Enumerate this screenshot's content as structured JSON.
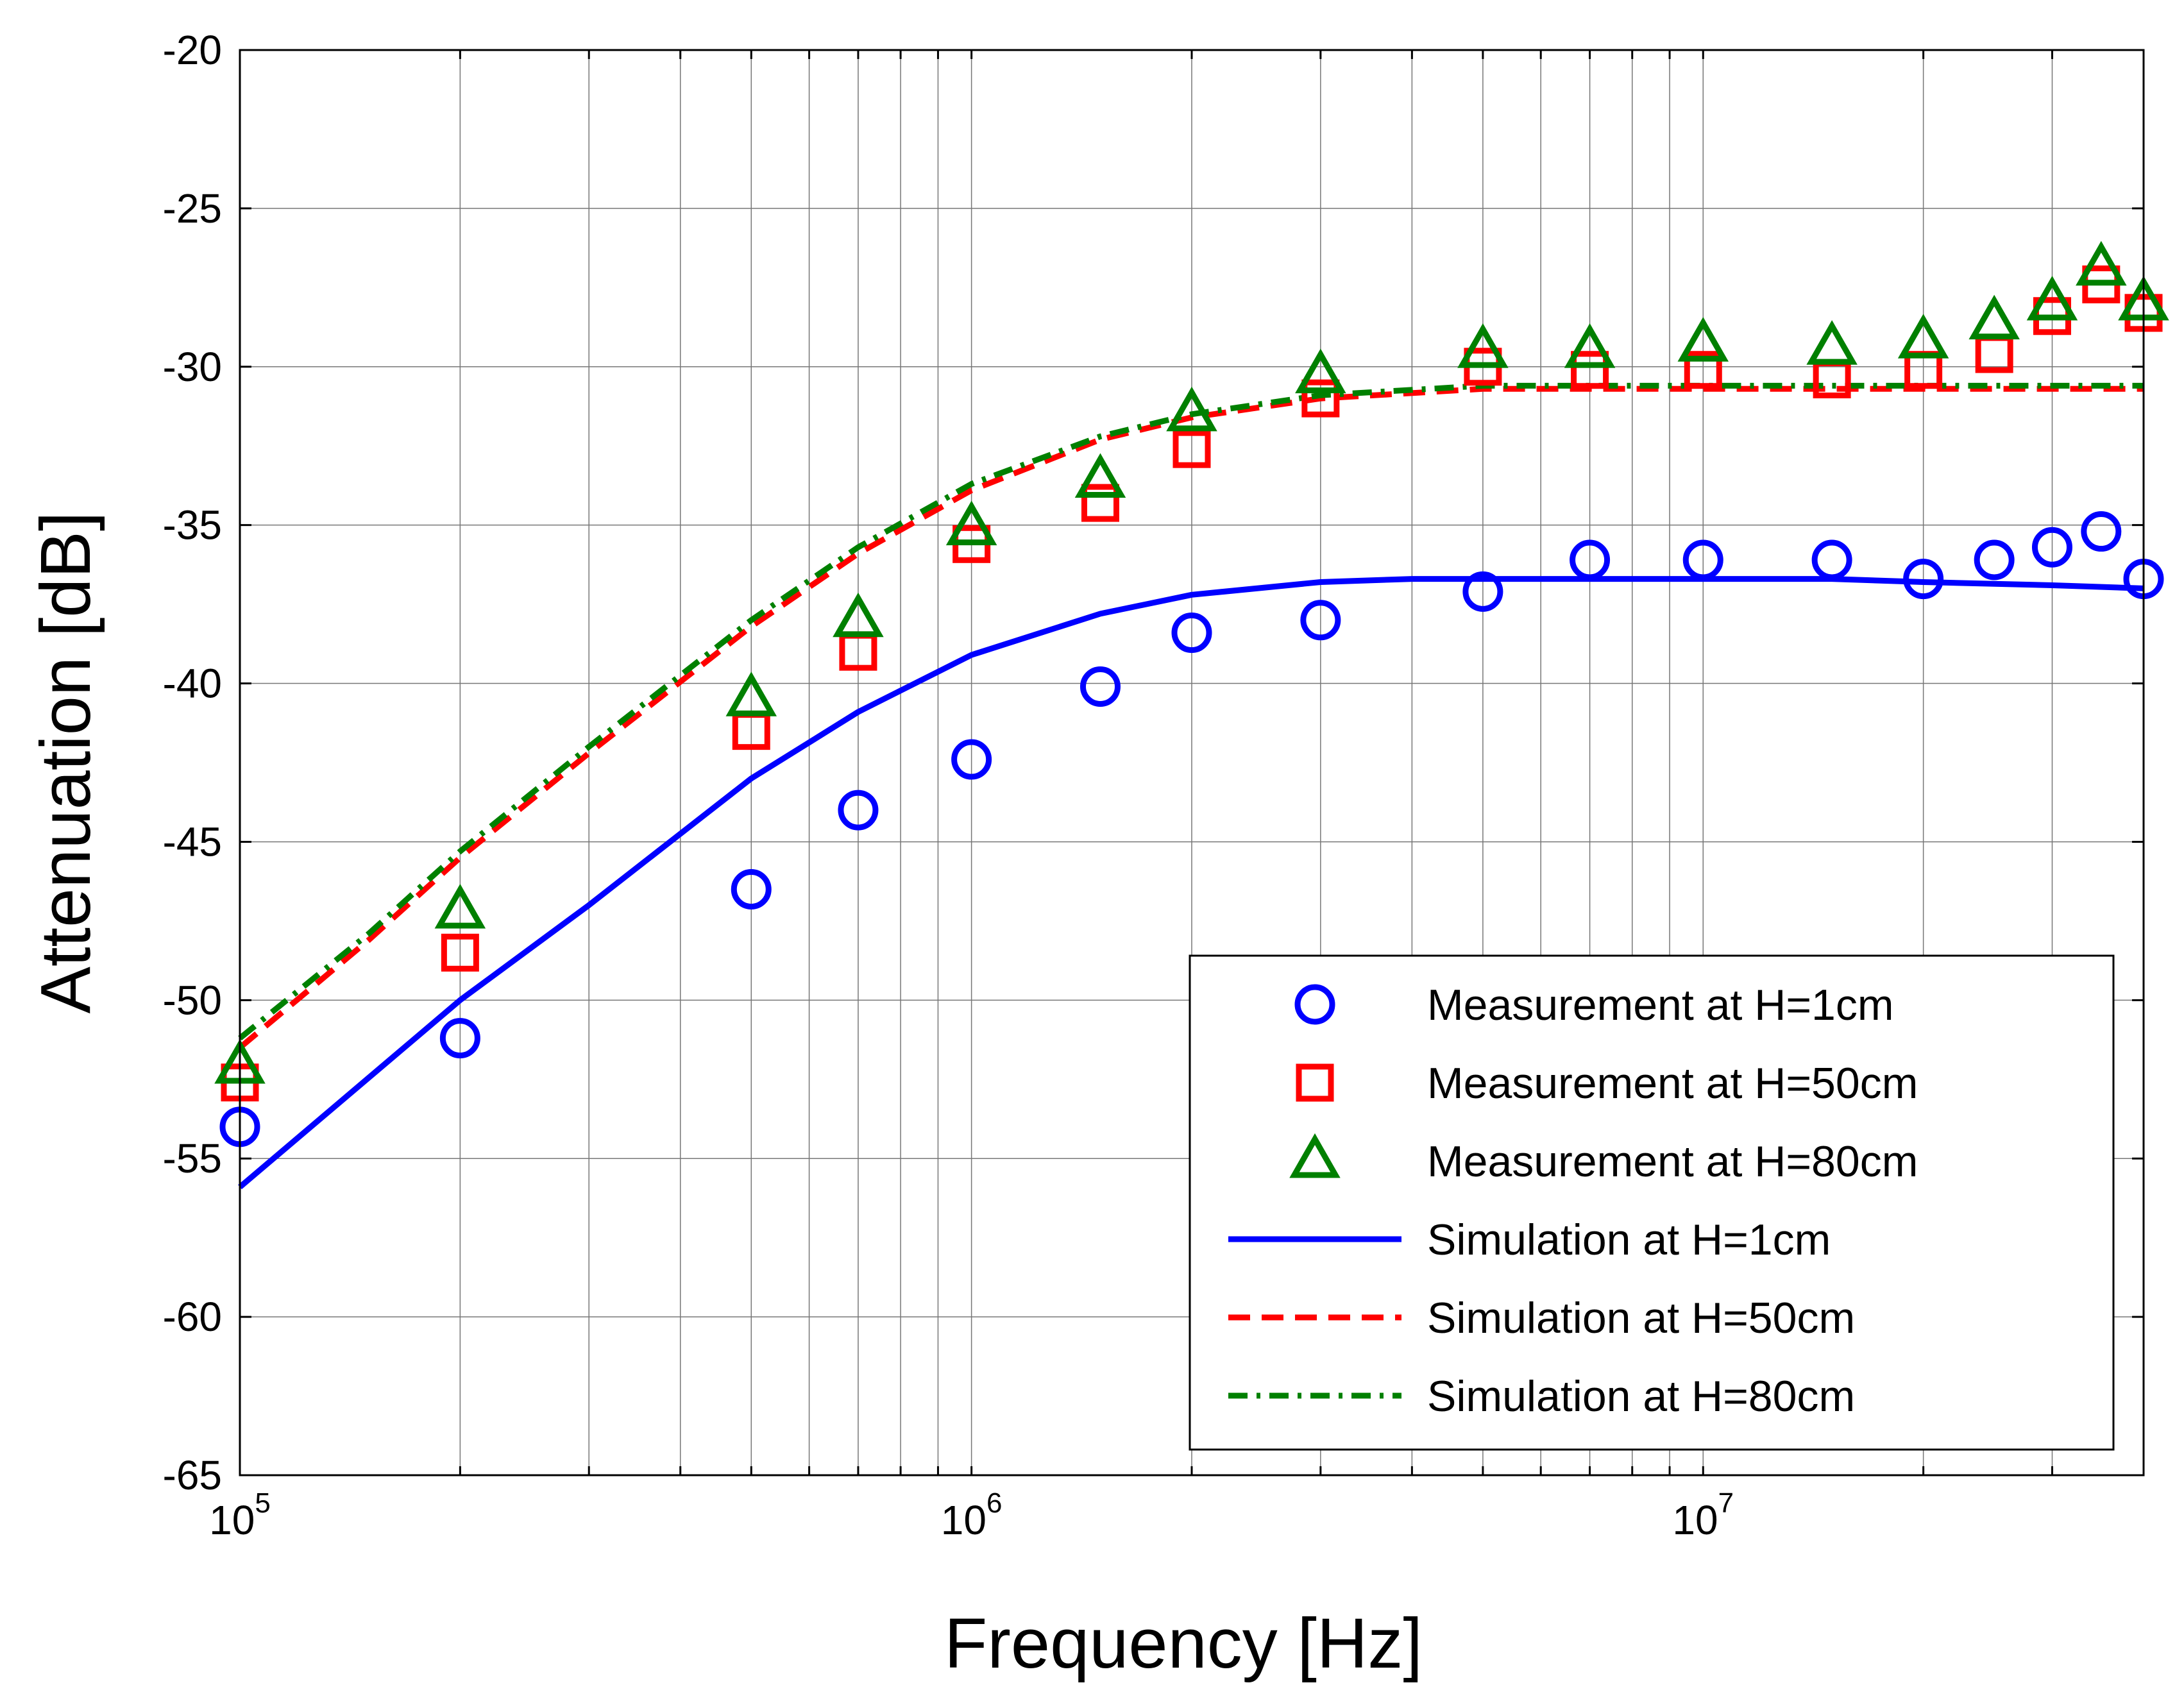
{
  "chart_data": {
    "type": "line",
    "title": "",
    "xlabel": "Frequency [Hz]",
    "ylabel": "Attenuation [dB]",
    "xscale": "log",
    "xlim": [
      100000,
      40000000
    ],
    "ylim": [
      -65,
      -20
    ],
    "grid": true,
    "legend_position": "bottom-right",
    "x_ticks": [
      {
        "value": 100000,
        "base": "10",
        "exp": "5"
      },
      {
        "value": 1000000,
        "base": "10",
        "exp": "6"
      },
      {
        "value": 10000000,
        "base": "10",
        "exp": "7"
      }
    ],
    "y_ticks": [
      "-20",
      "-25",
      "-30",
      "-35",
      "-40",
      "-45",
      "-50",
      "-55",
      "-60",
      "-65"
    ],
    "series": [
      {
        "name": "Measurement at H=1cm",
        "kind": "markers",
        "marker": "circle",
        "color": "#0000ff",
        "x": [
          100000,
          200000,
          500000,
          700000,
          1000000,
          1500000,
          2000000,
          3000000,
          5000000,
          7000000,
          10000000,
          15000000,
          20000000,
          25000000,
          30000000,
          35000000,
          40000000
        ],
        "y": [
          -54.0,
          -51.2,
          -46.5,
          -44.0,
          -42.4,
          -40.1,
          -38.4,
          -38.0,
          -37.1,
          -36.1,
          -36.1,
          -36.1,
          -36.7,
          -36.1,
          -35.7,
          -35.2,
          -36.7
        ]
      },
      {
        "name": "Measurement at H=50cm",
        "kind": "markers",
        "marker": "square",
        "color": "#ff0000",
        "x": [
          100000,
          200000,
          500000,
          700000,
          1000000,
          1500000,
          2000000,
          3000000,
          5000000,
          7000000,
          10000000,
          15000000,
          20000000,
          25000000,
          30000000,
          35000000,
          40000000
        ],
        "y": [
          -52.6,
          -48.5,
          -41.5,
          -39.0,
          -35.6,
          -34.3,
          -32.6,
          -31.0,
          -30.0,
          -30.1,
          -30.1,
          -30.4,
          -30.1,
          -29.6,
          -28.4,
          -27.4,
          -28.3
        ]
      },
      {
        "name": "Measurement at H=80cm",
        "kind": "markers",
        "marker": "triangle",
        "color": "#008000",
        "x": [
          100000,
          200000,
          500000,
          700000,
          1000000,
          1500000,
          2000000,
          3000000,
          5000000,
          7000000,
          10000000,
          15000000,
          20000000,
          25000000,
          30000000,
          35000000,
          40000000
        ],
        "y": [
          -52.1,
          -47.2,
          -40.5,
          -38.0,
          -35.1,
          -33.6,
          -31.5,
          -30.3,
          -29.5,
          -29.5,
          -29.3,
          -29.4,
          -29.2,
          -28.6,
          -28.0,
          -26.9,
          -28.0
        ]
      },
      {
        "name": "Simulation at H=1cm",
        "kind": "line",
        "dash": "solid",
        "color": "#0000ff",
        "x": [
          100000,
          200000,
          300000,
          500000,
          700000,
          1000000,
          1500000,
          2000000,
          3000000,
          4000000,
          5000000,
          7000000,
          10000000,
          15000000,
          20000000,
          30000000,
          40000000
        ],
        "y": [
          -55.9,
          -50.0,
          -47.0,
          -43.0,
          -40.9,
          -39.1,
          -37.8,
          -37.2,
          -36.8,
          -36.7,
          -36.7,
          -36.7,
          -36.7,
          -36.7,
          -36.8,
          -36.9,
          -37.0
        ]
      },
      {
        "name": "Simulation at H=50cm",
        "kind": "line",
        "dash": "dashed",
        "color": "#ff0000",
        "x": [
          100000,
          150000,
          200000,
          300000,
          500000,
          700000,
          1000000,
          1500000,
          2000000,
          3000000,
          5000000,
          10000000,
          20000000,
          40000000
        ],
        "y": [
          -51.5,
          -48.1,
          -45.5,
          -42.2,
          -38.2,
          -35.9,
          -33.9,
          -32.3,
          -31.6,
          -31.0,
          -30.7,
          -30.7,
          -30.7,
          -30.7
        ]
      },
      {
        "name": "Simulation at H=80cm",
        "kind": "line",
        "dash": "dashdot",
        "color": "#008000",
        "x": [
          100000,
          150000,
          200000,
          300000,
          500000,
          700000,
          1000000,
          1500000,
          2000000,
          3000000,
          5000000,
          10000000,
          20000000,
          40000000
        ],
        "y": [
          -51.2,
          -47.9,
          -45.3,
          -42.0,
          -38.0,
          -35.7,
          -33.7,
          -32.2,
          -31.5,
          -30.9,
          -30.6,
          -30.6,
          -30.6,
          -30.6
        ]
      }
    ]
  }
}
